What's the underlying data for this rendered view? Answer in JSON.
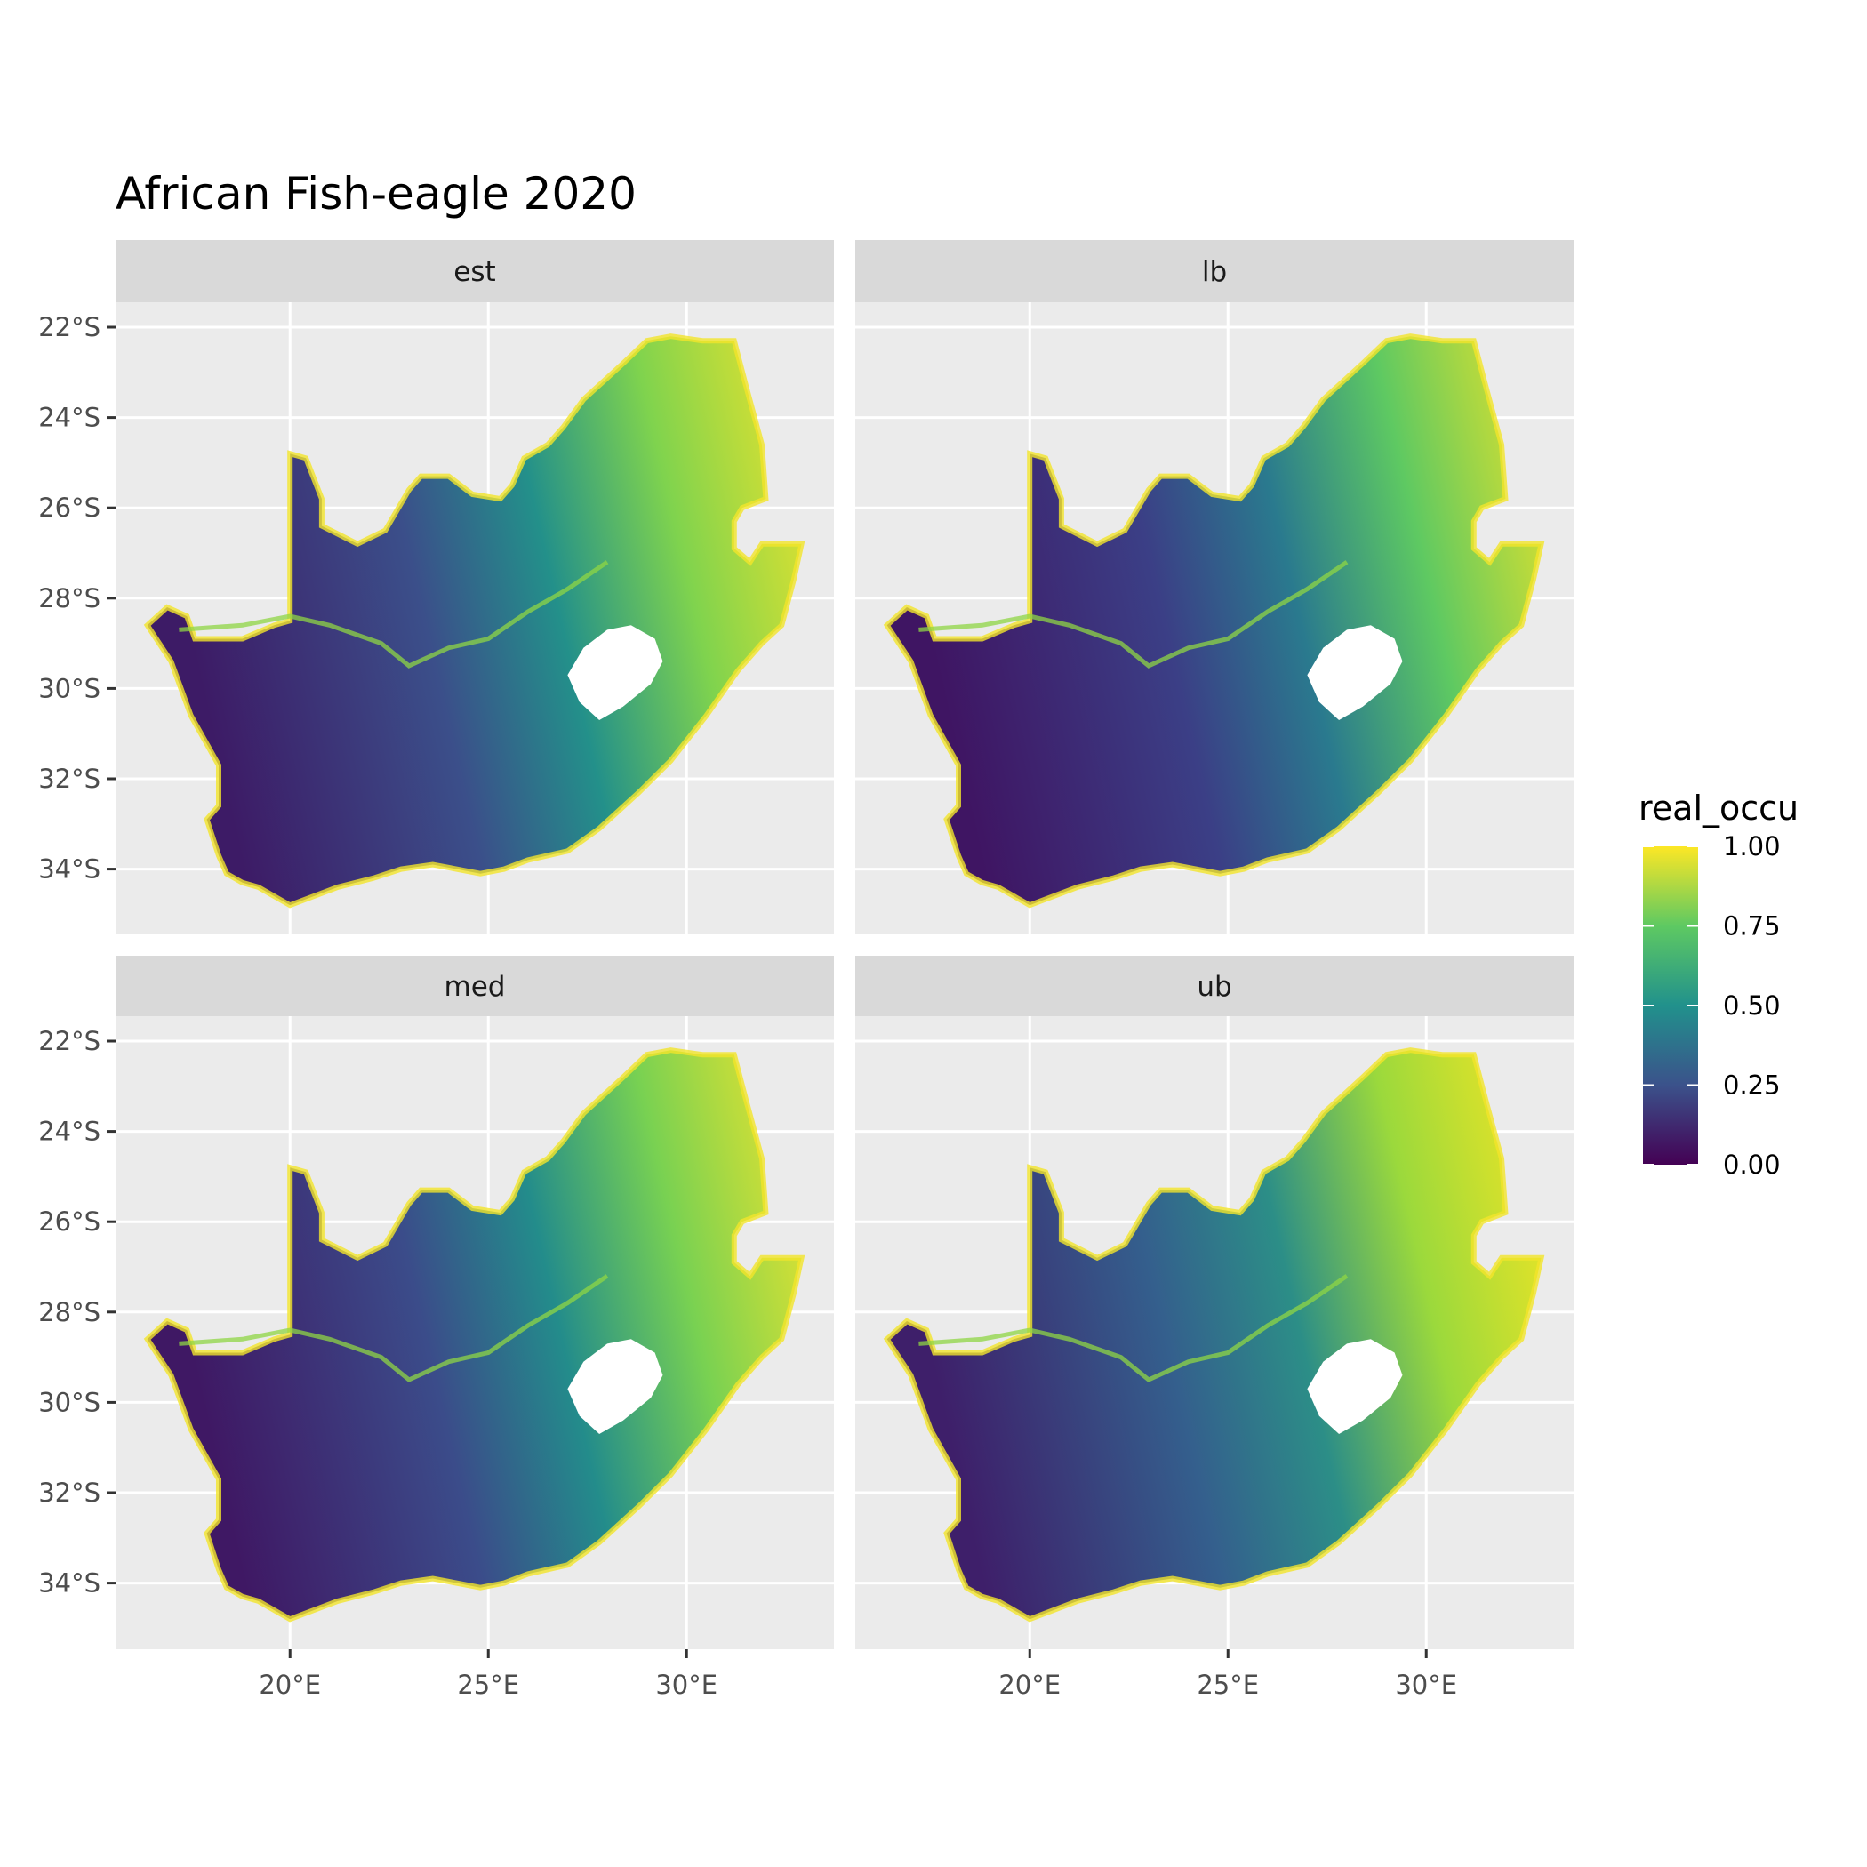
{
  "title": "African Fish-eagle 2020",
  "legend": {
    "title": "real_occu",
    "breaks": [
      1.0,
      0.75,
      0.5,
      0.25,
      0.0
    ],
    "labels": [
      "1.00",
      "0.75",
      "0.50",
      "0.25",
      "0.00"
    ],
    "colors": [
      "#440154",
      "#3b528b",
      "#21918c",
      "#5ec962",
      "#fde725"
    ]
  },
  "panels": [
    {
      "label": "est"
    },
    {
      "label": "lb"
    },
    {
      "label": "med"
    },
    {
      "label": "ub"
    }
  ],
  "axes": {
    "y_ticks": [
      {
        "lat": -22,
        "label": "22°S"
      },
      {
        "lat": -24,
        "label": "24°S"
      },
      {
        "lat": -26,
        "label": "26°S"
      },
      {
        "lat": -28,
        "label": "28°S"
      },
      {
        "lat": -30,
        "label": "30°S"
      },
      {
        "lat": -32,
        "label": "32°S"
      },
      {
        "lat": -34,
        "label": "34°S"
      }
    ],
    "x_ticks": [
      {
        "lon": 20,
        "label": "20°E"
      },
      {
        "lon": 25,
        "label": "25°E"
      },
      {
        "lon": 30,
        "label": "30°E"
      }
    ],
    "lon_range": [
      15.6,
      33.4
    ],
    "lat_range": [
      -35.4,
      -20.4
    ]
  },
  "colors": {
    "panel_bg": "#ebebeb",
    "grid": "#ffffff",
    "strip_bg": "#d9d9d9"
  }
}
